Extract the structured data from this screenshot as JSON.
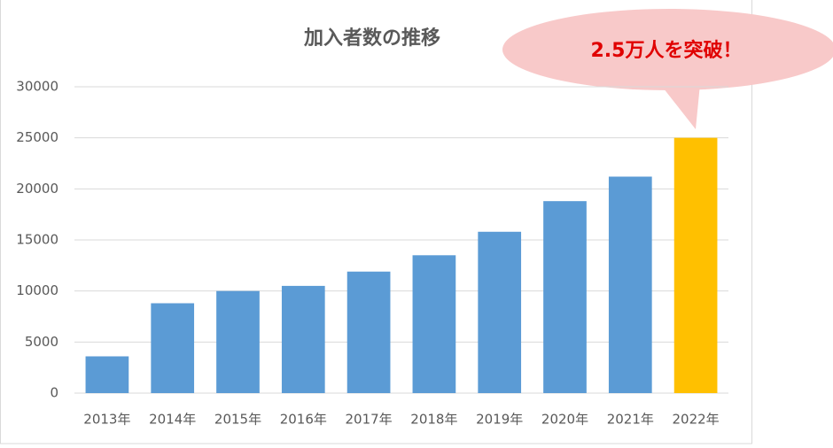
{
  "chart_data": {
    "type": "bar",
    "title": "加入者数の推移",
    "annotation": "2.5万人を突破！",
    "categories": [
      "2013年",
      "2014年",
      "2015年",
      "2016年",
      "2017年",
      "2018年",
      "2019年",
      "2020年",
      "2021年",
      "2022年"
    ],
    "values": [
      3600,
      8800,
      10000,
      10500,
      11900,
      13500,
      15800,
      18800,
      21200,
      25000
    ],
    "colors": [
      "#5b9bd5",
      "#5b9bd5",
      "#5b9bd5",
      "#5b9bd5",
      "#5b9bd5",
      "#5b9bd5",
      "#5b9bd5",
      "#5b9bd5",
      "#5b9bd5",
      "#ffc000"
    ],
    "ylim": [
      0,
      30000
    ],
    "yticks": [
      0,
      5000,
      10000,
      15000,
      20000,
      25000,
      30000
    ],
    "grid": true
  }
}
